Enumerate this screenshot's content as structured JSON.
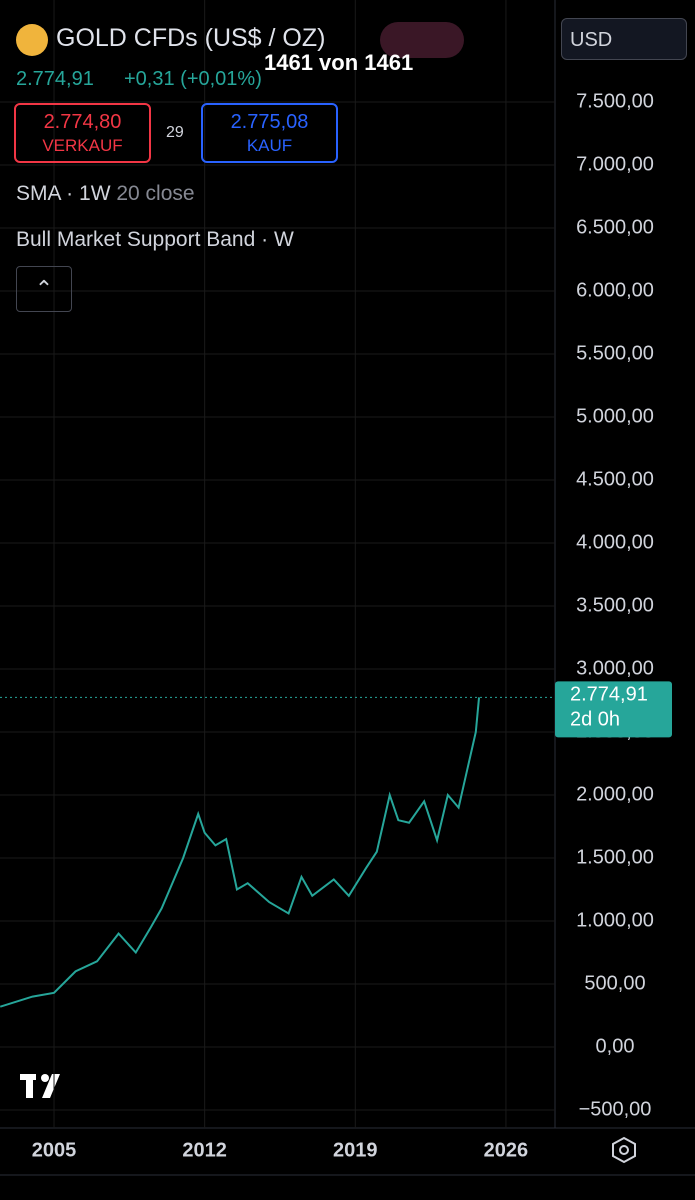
{
  "header": {
    "symbol": "GOLD CFDs (US$ / OZ)",
    "price": "2.774,91",
    "change": "+0,31 (+0,01%)",
    "sell_price": "2.774,80",
    "sell_label": "VERKAUF",
    "spread": "29",
    "buy_price": "2.775,08",
    "buy_label": "KAUF",
    "indicator_1": "SMA · 1W",
    "indicator_1_params": "20 close",
    "indicator_2": "Bull Market Support Band · W",
    "counter": "1461 von 1461",
    "currency": "USD"
  },
  "chart_data": {
    "type": "line",
    "color": "#26a69a",
    "x": [
      2002.5,
      2004,
      2005,
      2006,
      2007,
      2008,
      2008.8,
      2009.5,
      2010,
      2011,
      2011.7,
      2012,
      2012.5,
      2013,
      2013.5,
      2014,
      2015,
      2015.9,
      2016.5,
      2017,
      2018,
      2018.7,
      2019.5,
      2020,
      2020.6,
      2021,
      2021.5,
      2022.2,
      2022.8,
      2023.3,
      2023.8,
      2024.2,
      2024.6,
      2024.75
    ],
    "values": [
      320,
      400,
      430,
      600,
      680,
      900,
      750,
      950,
      1100,
      1500,
      1850,
      1700,
      1600,
      1650,
      1250,
      1300,
      1150,
      1060,
      1350,
      1200,
      1330,
      1200,
      1420,
      1550,
      2000,
      1800,
      1780,
      1950,
      1640,
      2000,
      1900,
      2200,
      2500,
      2774.91
    ],
    "xlim": [
      2002.49,
      2028.28
    ],
    "xticks": [
      2005,
      2012,
      2019,
      2026
    ],
    "ylim": [
      -643,
      8310
    ],
    "yticks": [
      {
        "value": -500,
        "label": "−500,00"
      },
      {
        "value": 0,
        "label": "0,00"
      },
      {
        "value": 500,
        "label": "500,00"
      },
      {
        "value": 1000,
        "label": "1.000,00"
      },
      {
        "value": 1500,
        "label": "1.500,00"
      },
      {
        "value": 2000,
        "label": "2.000,00"
      },
      {
        "value": 2500,
        "label": "2.500,00"
      },
      {
        "value": 3000,
        "label": "3.000,00"
      },
      {
        "value": 3500,
        "label": "3.500,00"
      },
      {
        "value": 4000,
        "label": "4.000,00"
      },
      {
        "value": 4500,
        "label": "4.500,00"
      },
      {
        "value": 5000,
        "label": "5.000,00"
      },
      {
        "value": 5500,
        "label": "5.500,00"
      },
      {
        "value": 6000,
        "label": "6.000,00"
      },
      {
        "value": 6500,
        "label": "6.500,00"
      },
      {
        "value": 7000,
        "label": "7.000,00"
      },
      {
        "value": 7500,
        "label": "7.500,00"
      }
    ],
    "last_price": {
      "value": 2774.91,
      "label": "2.774,91"
    },
    "countdown": "2d 0h",
    "grid": true
  }
}
